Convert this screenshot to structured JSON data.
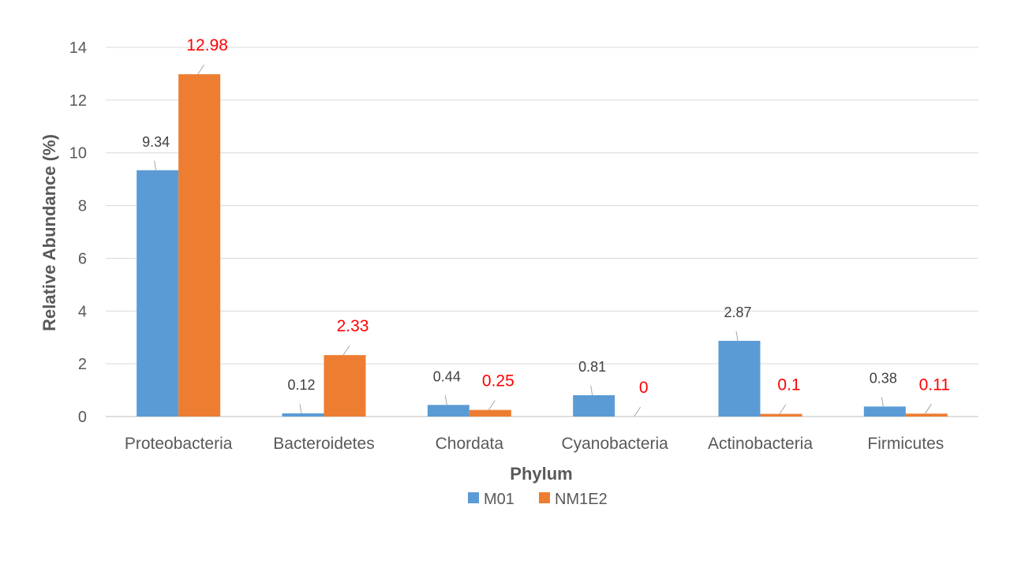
{
  "chart_data": {
    "type": "bar",
    "title": "",
    "xlabel": "Phylum",
    "ylabel": "Relative Abundance (%)",
    "ylim": [
      0,
      14
    ],
    "yticks": [
      0,
      2,
      4,
      6,
      8,
      10,
      12,
      14
    ],
    "grid": true,
    "legend_position": "bottom",
    "categories": [
      "Proteobacteria",
      "Bacteroidetes",
      "Chordata",
      "Cyanobacteria",
      "Actinobacteria",
      "Firmicutes"
    ],
    "series": [
      {
        "name": "M01",
        "color": "#5B9BD5",
        "label_color": "#404040",
        "values": [
          9.34,
          0.12,
          0.44,
          0.81,
          2.87,
          0.38
        ],
        "labels": [
          "9.34",
          "0.12",
          "0.44",
          "0.81",
          "2.87",
          "0.38"
        ]
      },
      {
        "name": "NM1E2",
        "color": "#ED7D31",
        "label_color": "#FF0000",
        "values": [
          12.98,
          2.33,
          0.25,
          0,
          0.1,
          0.11
        ],
        "labels": [
          "12.98",
          "2.33",
          "0.25",
          "0",
          "0.1",
          "0.11"
        ]
      }
    ]
  }
}
